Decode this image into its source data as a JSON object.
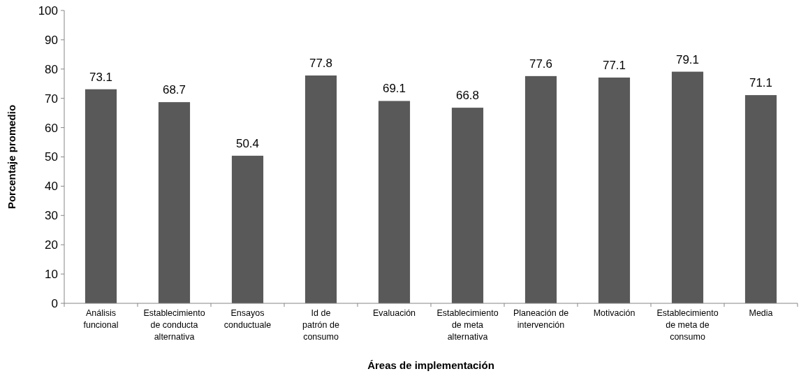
{
  "chart_data": {
    "type": "bar",
    "categories": [
      "Análisis\nfuncional",
      "Establecimiento\nde conducta\nalternativa",
      "Ensayos\nconductuale",
      "Id de\npatrón de\nconsumo",
      "Evaluación",
      "Establecimiento\nde meta\nalternativa",
      "Planeación de\nintervención",
      "Motivación",
      "Establecimiento\nde meta de\nconsumo",
      "Media"
    ],
    "values": [
      73.1,
      68.7,
      50.4,
      77.8,
      69.1,
      66.8,
      77.6,
      77.1,
      79.1,
      71.1
    ],
    "color": "#595959",
    "xlabel": "Áreas de implementación",
    "ylabel": "Porcentaje promedio",
    "ylim": [
      0,
      100
    ],
    "yticks": [
      0,
      10,
      20,
      30,
      40,
      50,
      60,
      70,
      80,
      90,
      100
    ],
    "data_labels": true
  }
}
